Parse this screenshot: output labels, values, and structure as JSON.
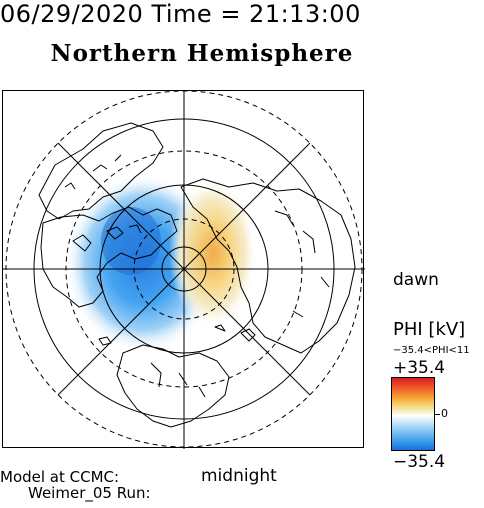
{
  "header": {
    "datetime": "06/29/2020 Time = 21:13:00",
    "hemisphere": "Northern Hemisphere"
  },
  "labels": {
    "dawn": "dawn",
    "midnight": "midnight",
    "model_line1": "Model at CCMC:",
    "model_line2": "Weimer_05 Run:"
  },
  "colorbar": {
    "title": "PHI [kV]",
    "range_text": "−35.4<PHI<11",
    "max_label": "+35.4",
    "zero_label": "0",
    "min_label": "−35.4",
    "max_color": "#d81f1f",
    "min_color": "#1f6fd6"
  },
  "map": {
    "projection": "polar, north pole centered",
    "grid": "dashed latitude circles, radial local-time lines",
    "features": [
      "coastlines",
      "electric potential pattern"
    ],
    "negative_cell_color": "#2a8fe8",
    "positive_cell_color": "#f7b23a"
  }
}
